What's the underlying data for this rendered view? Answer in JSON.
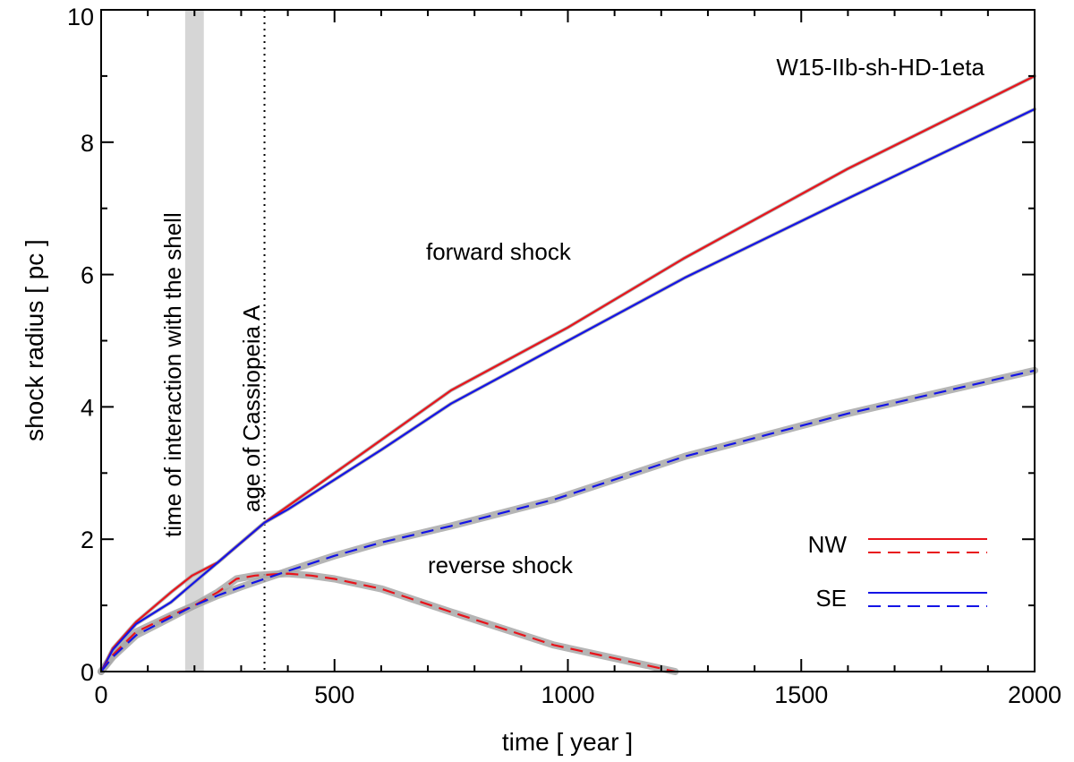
{
  "chart_data": {
    "type": "line",
    "title": "W15-IIb-sh-HD-1eta",
    "xlabel": "time [ year ]",
    "ylabel": "shock radius [ pc ]",
    "xlim": [
      0,
      2000
    ],
    "ylim": [
      0,
      10
    ],
    "xticks": [
      "0",
      "500",
      "1000",
      "1500",
      "2000"
    ],
    "yticks": [
      "0",
      "2",
      "4",
      "6",
      "8",
      "10"
    ],
    "grid": false,
    "legend": {
      "placement": "bottom-right",
      "entries": [
        {
          "label": "NW",
          "color": "#e8141b",
          "styles": [
            "solid",
            "dashed"
          ]
        },
        {
          "label": "SE",
          "color": "#1414e6",
          "styles": [
            "solid",
            "dashed"
          ]
        }
      ]
    },
    "annotations": {
      "forward": "forward shock",
      "reverse": "reverse shock",
      "interaction": "time of interaction with the shell",
      "cas_age": "age of Cassiopeia A"
    },
    "interaction_band": {
      "x0": 180,
      "x1": 220
    },
    "cas_age_year": 350,
    "series": [
      {
        "name": "NW forward shock",
        "color": "#e8141b",
        "style": "solid",
        "x": [
          0,
          25,
          75,
          150,
          195,
          250,
          300,
          350,
          400,
          500,
          600,
          750,
          1000,
          1250,
          1600,
          2000
        ],
        "y": [
          0,
          0.35,
          0.75,
          1.2,
          1.45,
          1.65,
          1.95,
          2.25,
          2.5,
          3.0,
          3.5,
          4.25,
          5.2,
          6.25,
          7.6,
          9.0
        ]
      },
      {
        "name": "SE forward shock",
        "color": "#1414e6",
        "style": "solid",
        "x": [
          0,
          25,
          75,
          150,
          200,
          250,
          300,
          350,
          400,
          500,
          600,
          750,
          1000,
          1250,
          1600,
          2000
        ],
        "y": [
          0,
          0.33,
          0.72,
          1.05,
          1.35,
          1.65,
          1.95,
          2.25,
          2.45,
          2.9,
          3.35,
          4.05,
          5.0,
          5.95,
          7.15,
          8.5
        ]
      },
      {
        "name": "NW reverse shock",
        "color": "#e8141b",
        "style": "dashed",
        "x": [
          0,
          25,
          75,
          150,
          200,
          250,
          290,
          330,
          370,
          400,
          450,
          500,
          600,
          750,
          970,
          1100,
          1230
        ],
        "y": [
          0,
          0.25,
          0.6,
          0.85,
          1.0,
          1.2,
          1.4,
          1.45,
          1.47,
          1.48,
          1.45,
          1.4,
          1.25,
          0.9,
          0.4,
          0.2,
          0.0
        ]
      },
      {
        "name": "SE reverse shock",
        "color": "#1414e6",
        "style": "dashed",
        "x": [
          0,
          25,
          75,
          150,
          200,
          250,
          300,
          350,
          400,
          500,
          600,
          750,
          970,
          1250,
          1600,
          2000
        ],
        "y": [
          0,
          0.22,
          0.55,
          0.82,
          1.0,
          1.15,
          1.28,
          1.4,
          1.52,
          1.75,
          1.95,
          2.2,
          2.6,
          3.25,
          3.9,
          4.55
        ]
      }
    ]
  }
}
